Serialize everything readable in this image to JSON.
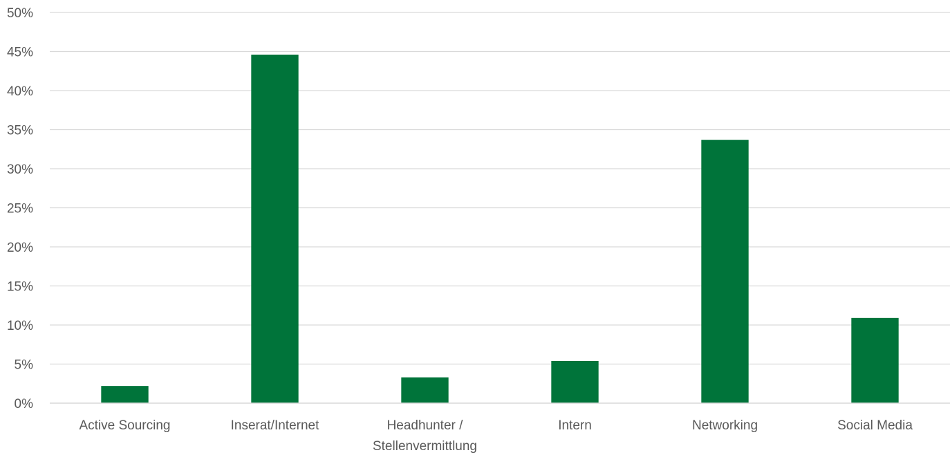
{
  "chart_data": {
    "type": "bar",
    "title": "",
    "xlabel": "",
    "ylabel": "",
    "categories": [
      "Active Sourcing",
      "Inserat/Internet",
      "Headhunter / Stellenvermittlung",
      "Intern",
      "Networking",
      "Social Media"
    ],
    "category_lines": [
      [
        "Active Sourcing"
      ],
      [
        "Inserat/Internet"
      ],
      [
        "Headhunter /",
        "Stellenvermittlung"
      ],
      [
        "Intern"
      ],
      [
        "Networking"
      ],
      [
        "Social Media"
      ]
    ],
    "values": [
      2.2,
      44.6,
      3.3,
      5.4,
      33.7,
      10.9
    ],
    "unit": "%",
    "ylim": [
      0,
      50
    ],
    "yticks": [
      "0%",
      "5%",
      "10%",
      "15%",
      "20%",
      "25%",
      "30%",
      "35%",
      "40%",
      "45%",
      "50%"
    ],
    "ytick_values": [
      0,
      5,
      10,
      15,
      20,
      25,
      30,
      35,
      40,
      45,
      50
    ],
    "grid": true,
    "legend": "none",
    "bar_color": "#00743A"
  }
}
